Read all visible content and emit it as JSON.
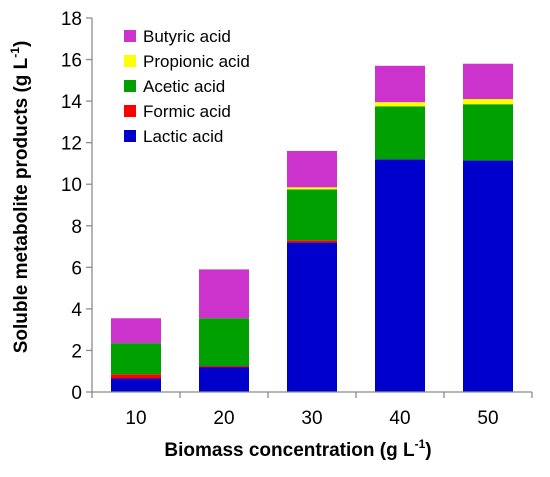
{
  "chart_data": {
    "type": "bar",
    "stacked": true,
    "title": "",
    "xlabel": "Biomass concentration (g L",
    "xlabel_sup": "-1",
    "xlabel_end": ")",
    "ylabel": "Soluble metabolite products (g L",
    "ylabel_sup": "-1",
    "ylabel_end": ")",
    "categories": [
      "10",
      "20",
      "30",
      "40",
      "50"
    ],
    "ylim": [
      0,
      18
    ],
    "yticks": [
      0,
      2,
      4,
      6,
      8,
      10,
      12,
      14,
      16,
      18
    ],
    "grid": false,
    "legend_position": "top-left",
    "series": [
      {
        "name": "Lactic acid",
        "color": "#0000cc",
        "values": [
          0.65,
          1.2,
          7.2,
          11.2,
          11.15
        ]
      },
      {
        "name": "Formic acid",
        "color": "#ff0000",
        "values": [
          0.2,
          0.05,
          0.1,
          0.0,
          0.0
        ]
      },
      {
        "name": "Acetic acid",
        "color": "#00a000",
        "values": [
          1.5,
          2.3,
          2.45,
          2.55,
          2.7
        ]
      },
      {
        "name": "Propionic acid",
        "color": "#ffff00",
        "values": [
          0.0,
          0.0,
          0.1,
          0.2,
          0.25
        ]
      },
      {
        "name": "Butyric acid",
        "color": "#cc33cc",
        "values": [
          1.2,
          2.35,
          1.75,
          1.75,
          1.7
        ]
      }
    ],
    "legend_order": [
      "Butyric acid",
      "Propionic acid",
      "Acetic acid",
      "Formic acid",
      "Lactic acid"
    ]
  }
}
